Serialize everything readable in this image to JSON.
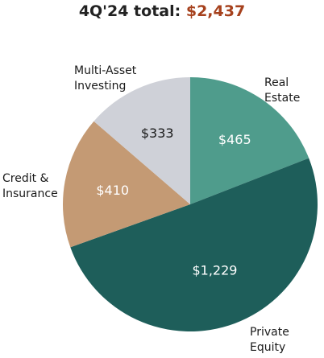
{
  "chart_data": {
    "type": "pie",
    "title_prefix": "4Q'24 total:",
    "title_value": "$2,437",
    "total": 2437,
    "slices": [
      {
        "name": "Real Estate",
        "label_line1": "Real",
        "label_line2": "Estate",
        "value": 465,
        "value_label": "$465",
        "color": "#4f9c8c"
      },
      {
        "name": "Private Equity",
        "label_line1": "Private",
        "label_line2": "Equity",
        "value": 1229,
        "value_label": "$1,229",
        "color": "#1e5e5a"
      },
      {
        "name": "Credit & Insurance",
        "label_line1": "Credit &",
        "label_line2": "Insurance",
        "value": 410,
        "value_label": "$410",
        "color": "#c49a74"
      },
      {
        "name": "Multi-Asset Investing",
        "label_line1": "Multi-Asset",
        "label_line2": "Investing",
        "value": 333,
        "value_label": "$333",
        "color": "#cfd1d8"
      }
    ]
  }
}
